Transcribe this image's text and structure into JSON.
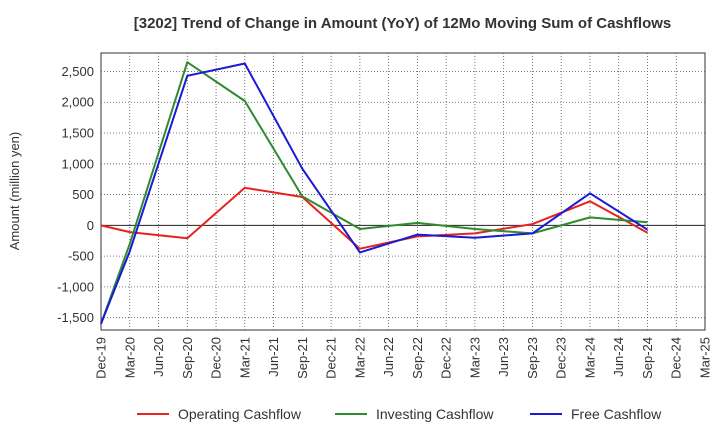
{
  "chart_data": {
    "type": "line",
    "title": "[3202]  Trend of Change in Amount (YoY) of 12Mo Moving Sum of Cashflows",
    "xlabel": "",
    "ylabel": "Amount (million yen)",
    "ylim": [
      -1700,
      2800
    ],
    "yticks": [
      2500,
      2000,
      1500,
      1000,
      500,
      0,
      -500,
      -1000,
      -1500
    ],
    "ytick_labels": [
      "2,500",
      "2,000",
      "1,500",
      "1,000",
      "500",
      "0",
      "-500",
      "-1,000",
      "-1,500"
    ],
    "categories": [
      "Dec-19",
      "Mar-20",
      "Jun-20",
      "Sep-20",
      "Dec-20",
      "Mar-21",
      "Jun-21",
      "Sep-21",
      "Dec-21",
      "Mar-22",
      "Jun-22",
      "Sep-22",
      "Dec-22",
      "Mar-23",
      "Jun-23",
      "Sep-23",
      "Dec-23",
      "Mar-24",
      "Jun-24",
      "Sep-24",
      "Dec-24",
      "Mar-25"
    ],
    "series": [
      {
        "name": "Operating Cashflow",
        "color": "#e8231f",
        "values": [
          0,
          -110,
          null,
          -210,
          null,
          610,
          null,
          460,
          null,
          -380,
          null,
          -180,
          null,
          -130,
          null,
          20,
          null,
          390,
          null,
          -120,
          null,
          null
        ]
      },
      {
        "name": "Investing Cashflow",
        "color": "#2e8b2e",
        "values": [
          -1600,
          -300,
          null,
          2650,
          null,
          2020,
          null,
          470,
          null,
          -60,
          null,
          40,
          null,
          -60,
          null,
          -130,
          null,
          130,
          null,
          50,
          null,
          null
        ]
      },
      {
        "name": "Free Cashflow",
        "color": "#1a1ad6",
        "values": [
          -1600,
          -420,
          null,
          2430,
          null,
          2630,
          null,
          920,
          null,
          -440,
          null,
          -150,
          null,
          -200,
          null,
          -130,
          null,
          520,
          null,
          -70,
          null,
          null
        ]
      }
    ],
    "grid": true,
    "legend": "bottom"
  }
}
